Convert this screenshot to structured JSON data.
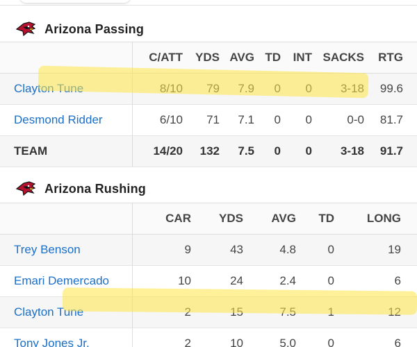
{
  "passing": {
    "title": "Arizona Passing",
    "columns": [
      "C/ATT",
      "YDS",
      "AVG",
      "TD",
      "INT",
      "SACKS",
      "RTG"
    ],
    "rows": [
      {
        "name": "Clayton Tune",
        "catt": "8/10",
        "yds": "79",
        "avg": "7.9",
        "td": "0",
        "int": "0",
        "sacks": "3-18",
        "rtg": "99.6"
      },
      {
        "name": "Desmond Ridder",
        "catt": "6/10",
        "yds": "71",
        "avg": "7.1",
        "td": "0",
        "int": "0",
        "sacks": "0-0",
        "rtg": "81.7"
      }
    ],
    "team": {
      "name": "TEAM",
      "catt": "14/20",
      "yds": "132",
      "avg": "7.5",
      "td": "0",
      "int": "0",
      "sacks": "3-18",
      "rtg": "91.7"
    }
  },
  "rushing": {
    "title": "Arizona Rushing",
    "columns": [
      "CAR",
      "YDS",
      "AVG",
      "TD",
      "LONG"
    ],
    "rows": [
      {
        "name": "Trey Benson",
        "car": "9",
        "yds": "43",
        "avg": "4.8",
        "td": "0",
        "long": "19"
      },
      {
        "name": "Emari Demercado",
        "car": "10",
        "yds": "24",
        "avg": "2.4",
        "td": "0",
        "long": "6"
      },
      {
        "name": "Clayton Tune",
        "car": "2",
        "yds": "15",
        "avg": "7.5",
        "td": "1",
        "long": "12"
      },
      {
        "name": "Tony Jones Jr.",
        "car": "2",
        "yds": "10",
        "avg": "5.0",
        "td": "0",
        "long": "6"
      }
    ]
  },
  "colors": {
    "link": "#1a6fc9",
    "highlight": "#ffe646",
    "logo_red": "#b5122f"
  },
  "icons": {
    "team_logo": "cardinal-head-icon"
  }
}
